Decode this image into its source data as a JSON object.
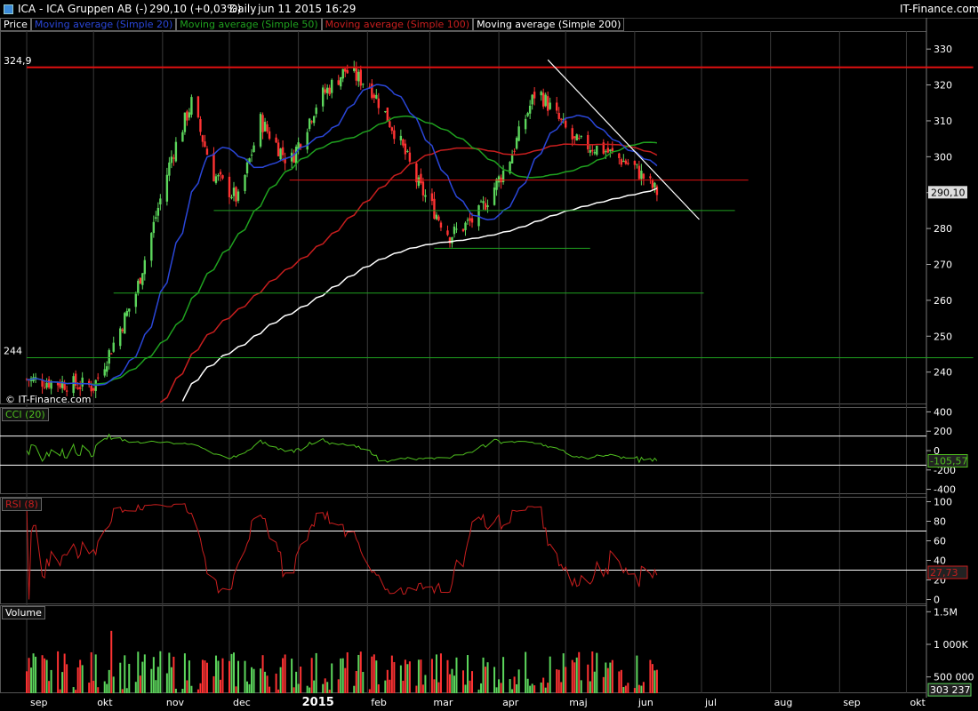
{
  "header": {
    "symbol": "ICA - ICA Gruppen AB (-)",
    "price": "290,10 (+0,03%)",
    "period": "Daily",
    "timestamp": "jun 11 2015 16:29",
    "brand": "IT-Finance.com",
    "icon": "square-icon"
  },
  "legend": {
    "price": "Price",
    "sma20": "Moving average (Simple 20)",
    "sma50": "Moving average (Simple 50)",
    "sma100": "Moving average (Simple 100)",
    "sma200": "Moving average (Simple 200)"
  },
  "watermark": "© IT-Finance.com",
  "colors": {
    "bg": "#000000",
    "up": "#5cd65c",
    "down": "#ff3333",
    "sma20": "#2a46d8",
    "sma50": "#1fa11f",
    "sma100": "#c81e1e",
    "sma200": "#ffffff",
    "hline_red": "#e01010",
    "hline_green": "#1fa11f",
    "cci": "#4fbf1f",
    "rsi": "#c81e1e",
    "axis_text": "#ffffff",
    "grid": "#3a3a3a"
  },
  "chart_data": [
    {
      "type": "candlestick",
      "panel": "price",
      "x_ticks": [
        "sep",
        "okt",
        "nov",
        "dec",
        "2015",
        "feb",
        "mar",
        "apr",
        "maj",
        "jun",
        "jul",
        "aug",
        "sep",
        "okt"
      ],
      "ylim": [
        231,
        335
      ],
      "y_ticks": [
        240,
        250,
        260,
        270,
        280,
        290,
        300,
        310,
        320,
        330
      ],
      "last_price": "290,10",
      "level_labels": [
        "324,9",
        "244"
      ],
      "key_prices": [
        {
          "date": "2014-09-01",
          "close": 238
        },
        {
          "date": "2014-10-01",
          "close": 236
        },
        {
          "date": "2014-10-10",
          "close": 248
        },
        {
          "date": "2014-10-20",
          "close": 262
        },
        {
          "date": "2014-11-05",
          "close": 300
        },
        {
          "date": "2014-11-14",
          "close": 315
        },
        {
          "date": "2014-11-24",
          "close": 295
        },
        {
          "date": "2014-12-05",
          "close": 288
        },
        {
          "date": "2014-12-15",
          "close": 310
        },
        {
          "date": "2014-12-28",
          "close": 298
        },
        {
          "date": "2015-01-10",
          "close": 316
        },
        {
          "date": "2015-01-22",
          "close": 324
        },
        {
          "date": "2015-02-02",
          "close": 320
        },
        {
          "date": "2015-02-15",
          "close": 305
        },
        {
          "date": "2015-02-24",
          "close": 292
        },
        {
          "date": "2015-03-10",
          "close": 278
        },
        {
          "date": "2015-03-22",
          "close": 283
        },
        {
          "date": "2015-04-05",
          "close": 298
        },
        {
          "date": "2015-04-18",
          "close": 319
        },
        {
          "date": "2015-05-05",
          "close": 304
        },
        {
          "date": "2015-05-18",
          "close": 302
        },
        {
          "date": "2015-06-01",
          "close": 297
        },
        {
          "date": "2015-06-11",
          "close": 290.1
        }
      ],
      "horizontal_levels": [
        {
          "price": 324.9,
          "color": "red",
          "from": "2014-09-01",
          "to": "2015-10-31"
        },
        {
          "price": 293.5,
          "color": "red",
          "from": "2014-12-28",
          "to": "2015-07-22"
        },
        {
          "price": 285,
          "color": "green",
          "from": "2014-11-24",
          "to": "2015-07-16"
        },
        {
          "price": 274.5,
          "color": "green",
          "from": "2015-03-03",
          "to": "2015-05-12"
        },
        {
          "price": 262,
          "color": "green",
          "from": "2014-10-10",
          "to": "2015-07-02"
        },
        {
          "price": 244,
          "color": "green",
          "from": "2014-09-01",
          "to": "2015-10-31"
        }
      ],
      "trendlines": [
        {
          "from": {
            "date": "2015-04-23",
            "price": 327
          },
          "to": {
            "date": "2015-06-30",
            "price": 282.5
          },
          "color": "white"
        }
      ],
      "moving_averages": [
        "sma20",
        "sma50",
        "sma100",
        "sma200"
      ]
    },
    {
      "type": "line",
      "panel": "cci",
      "label": "CCI (20)",
      "ylim": [
        -450,
        450
      ],
      "y_ticks": [
        400,
        200,
        0,
        -200,
        -400
      ],
      "reference_lines": [
        150,
        -150
      ],
      "last_value": "-105,57"
    },
    {
      "type": "line",
      "panel": "rsi",
      "label": "RSI (8)",
      "ylim": [
        -5,
        105
      ],
      "y_ticks": [
        100,
        80,
        60,
        40,
        20,
        0
      ],
      "reference_lines": [
        70,
        30
      ],
      "last_value": "27,73"
    },
    {
      "type": "bar",
      "panel": "volume",
      "label": "Volume",
      "ylim": [
        250000,
        1600000
      ],
      "y_ticks": [
        "1.5M",
        "1 000K",
        "500 000"
      ],
      "last_value": "303 237"
    }
  ]
}
